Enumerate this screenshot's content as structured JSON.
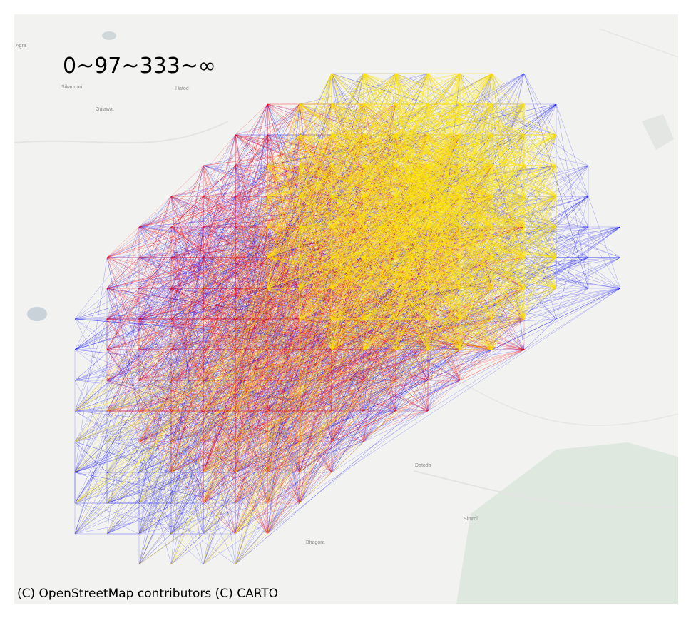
{
  "map": {
    "legend_text": "0~97~333~∞",
    "attribution": "(C) OpenStreetMap contributors (C) CARTO",
    "place_labels": {
      "agra": "Agra",
      "sikandari": "Sikandari",
      "hatod": "Hatod",
      "gulawat": "Gulawat",
      "datoda": "Datoda",
      "simrol": "Simrol",
      "bhagora": "Bhagora"
    },
    "colors": {
      "background": "#f2f2f0",
      "low_flow": "#0000ff",
      "mid_flow": "#ff0000",
      "high_flow": "#ffe600",
      "forest": "#dfe8df",
      "water": "#c8d2d8"
    },
    "flow_classes": [
      "0~97",
      "97~333",
      "333~∞"
    ]
  }
}
